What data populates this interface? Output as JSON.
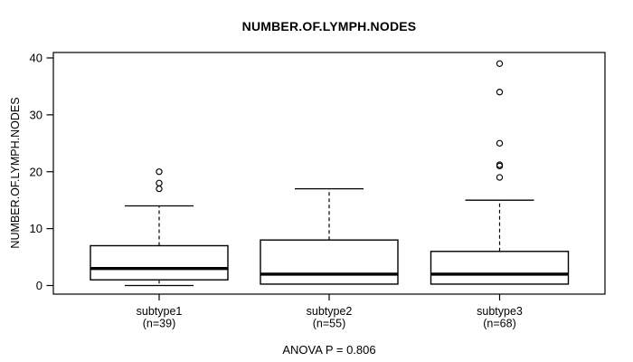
{
  "title": "NUMBER.OF.LYMPH.NODES",
  "footer": {
    "anova_label": "ANOVA P = 0.806"
  },
  "chart_data": {
    "type": "boxplot",
    "title": "NUMBER.OF.LYMPH.NODES",
    "ylabel": "NUMBER.OF.LYMPH.NODES",
    "xlabel": "",
    "ylim": [
      0,
      40
    ],
    "yticks": [
      0,
      10,
      20,
      30,
      40
    ],
    "grid": false,
    "legend": "none",
    "annotation": "ANOVA P = 0.806",
    "colors": {
      "line": "#000000",
      "box_fill": "#ffffff",
      "background": "#ffffff"
    },
    "groups": [
      {
        "label": "subtype1",
        "sublabel": "(n=39)",
        "n": 39,
        "whisker_low": 0,
        "q1": 1,
        "median": 3,
        "q3": 7,
        "whisker_high": 14,
        "outliers": [
          17,
          18,
          20
        ]
      },
      {
        "label": "subtype2",
        "sublabel": "(n=55)",
        "n": 55,
        "whisker_low": 0.25,
        "q1": 0.25,
        "median": 2,
        "q3": 8,
        "whisker_high": 17,
        "outliers": []
      },
      {
        "label": "subtype3",
        "sublabel": "(n=68)",
        "n": 68,
        "whisker_low": 0.25,
        "q1": 0.25,
        "median": 2,
        "q3": 6,
        "whisker_high": 15,
        "outliers": [
          19,
          21,
          21,
          25,
          34,
          39
        ]
      }
    ]
  }
}
